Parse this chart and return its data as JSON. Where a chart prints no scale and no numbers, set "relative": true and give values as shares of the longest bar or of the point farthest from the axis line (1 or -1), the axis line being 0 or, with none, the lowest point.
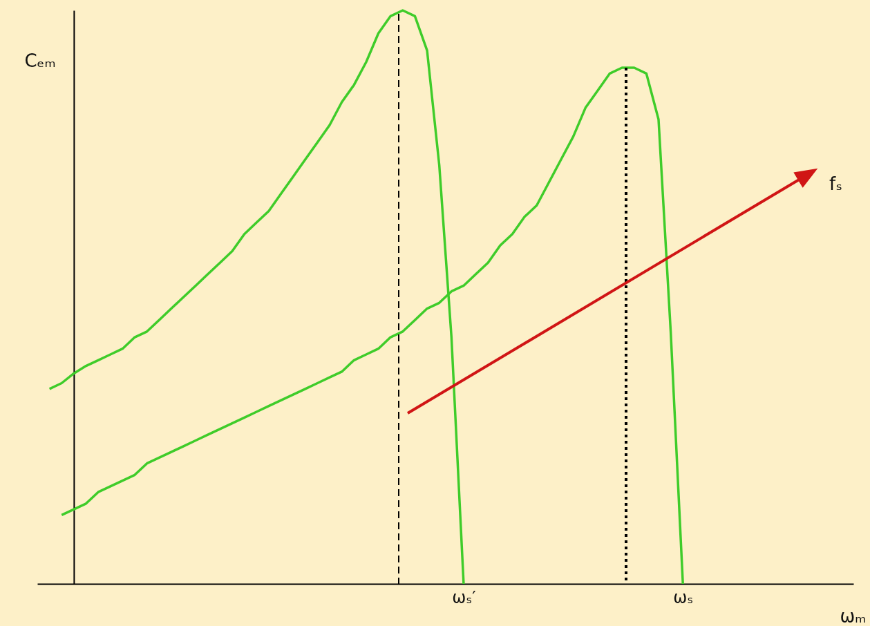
{
  "chart_data": {
    "type": "line",
    "relative": true,
    "xlabel": "ωₘ",
    "ylabel": "Cₑₘ",
    "categories": [
      null,
      null,
      null,
      null,
      null,
      null,
      null,
      null,
      null,
      null,
      null,
      null,
      null,
      null,
      null,
      null,
      null,
      null,
      null,
      null,
      null,
      null,
      null,
      null,
      null,
      null,
      null,
      null,
      null,
      null,
      null,
      null,
      null,
      null,
      null,
      "ωₛ′",
      null,
      null,
      null,
      null,
      null,
      null,
      null,
      null,
      null,
      null,
      null,
      null,
      null,
      null,
      null,
      null,
      null,
      "ωₛ",
      null,
      null,
      null,
      null,
      null,
      null,
      null,
      null,
      null,
      null,
      null,
      null,
      null,
      null
    ],
    "series": [
      {
        "color": "#3fcc2a",
        "values": [
          null,
          0.34,
          0.35,
          0.367,
          0.38,
          0.39,
          0.4,
          0.41,
          0.43,
          0.44,
          0.46,
          0.48,
          0.5,
          0.52,
          0.54,
          0.56,
          0.58,
          0.61,
          0.63,
          0.65,
          0.68,
          0.71,
          0.74,
          0.77,
          0.8,
          0.84,
          0.87,
          0.91,
          0.96,
          0.99,
          1.0,
          0.99,
          0.93,
          0.73,
          0.43,
          0,
          null,
          null,
          null,
          null,
          null,
          null,
          null,
          null,
          null,
          null,
          null,
          null,
          null,
          null,
          null,
          null,
          null,
          null,
          null,
          null,
          null,
          null,
          null,
          null,
          null,
          null,
          null,
          null,
          null,
          null,
          null,
          null
        ]
      },
      {
        "color": "#3fcc2a",
        "values": [
          null,
          null,
          0.12,
          0.13,
          0.14,
          0.16,
          0.17,
          0.18,
          0.19,
          0.21,
          0.22,
          0.23,
          0.24,
          0.25,
          0.26,
          0.27,
          0.28,
          0.29,
          0.3,
          0.31,
          0.32,
          0.33,
          0.34,
          0.35,
          0.36,
          0.37,
          0.39,
          0.4,
          0.41,
          0.43,
          0.44,
          0.46,
          0.48,
          0.49,
          0.51,
          0.52,
          0.54,
          0.56,
          0.59,
          0.61,
          0.64,
          0.66,
          0.7,
          0.74,
          0.78,
          0.83,
          0.86,
          0.89,
          0.9,
          0.9,
          0.89,
          0.81,
          0.44,
          0,
          null,
          null,
          null,
          null,
          null,
          null,
          null,
          null,
          null,
          null,
          null,
          null,
          null,
          null
        ]
      }
    ],
    "annotations": [
      "fₛ"
    ]
  }
}
